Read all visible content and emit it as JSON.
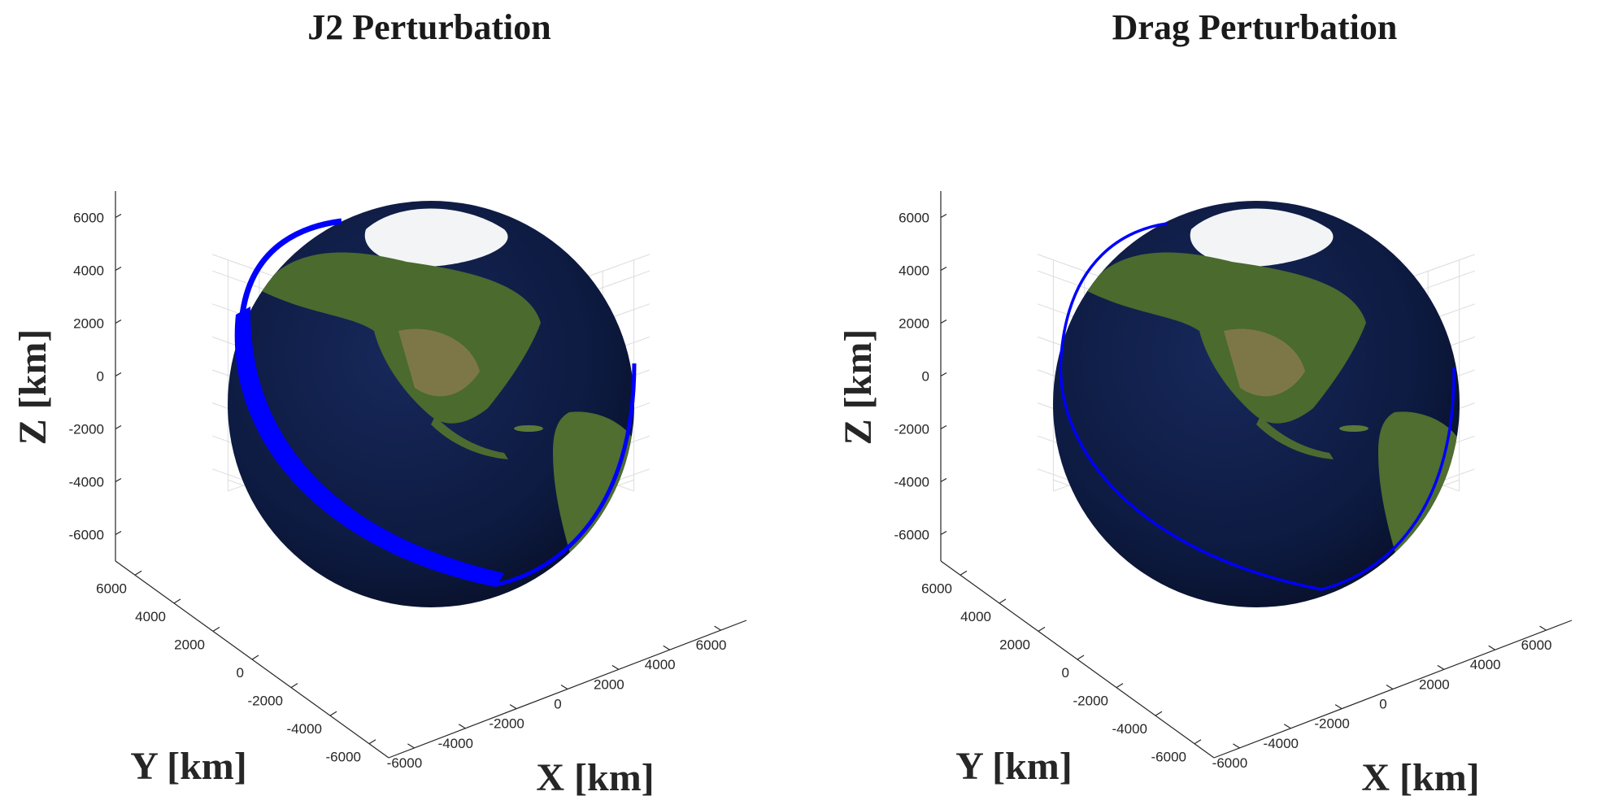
{
  "chart_data": [
    {
      "type": "orbit-3d",
      "title": "J2 Perturbation",
      "xlabel": "X [km]",
      "ylabel": "Y [km]",
      "zlabel": "Z [km]",
      "xticks": [
        -6000,
        -4000,
        -2000,
        0,
        2000,
        4000,
        6000
      ],
      "yticks": [
        -6000,
        -4000,
        -2000,
        0,
        2000,
        4000,
        6000
      ],
      "zticks": [
        -6000,
        -4000,
        -2000,
        0,
        2000,
        4000,
        6000
      ],
      "xlim": [
        -7000,
        7000
      ],
      "ylim": [
        -7000,
        7000
      ],
      "zlim": [
        -7000,
        7000
      ],
      "grid": true,
      "series": [
        {
          "color": "#0000ff",
          "band": "wide"
        }
      ],
      "earth": "textured globe"
    },
    {
      "type": "orbit-3d",
      "title": "Drag Perturbation",
      "xlabel": "X [km]",
      "ylabel": "Y [km]",
      "zlabel": "Z [km]",
      "xticks": [
        -6000,
        -4000,
        -2000,
        0,
        2000,
        4000,
        6000
      ],
      "yticks": [
        -6000,
        -4000,
        -2000,
        0,
        2000,
        4000,
        6000
      ],
      "zticks": [
        -6000,
        -4000,
        -2000,
        0,
        2000,
        4000,
        6000
      ],
      "xlim": [
        -7000,
        7000
      ],
      "ylim": [
        -7000,
        7000
      ],
      "zlim": [
        -7000,
        7000
      ],
      "grid": true,
      "series": [
        {
          "color": "#0000ff",
          "band": "thin"
        }
      ],
      "earth": "textured globe"
    }
  ]
}
